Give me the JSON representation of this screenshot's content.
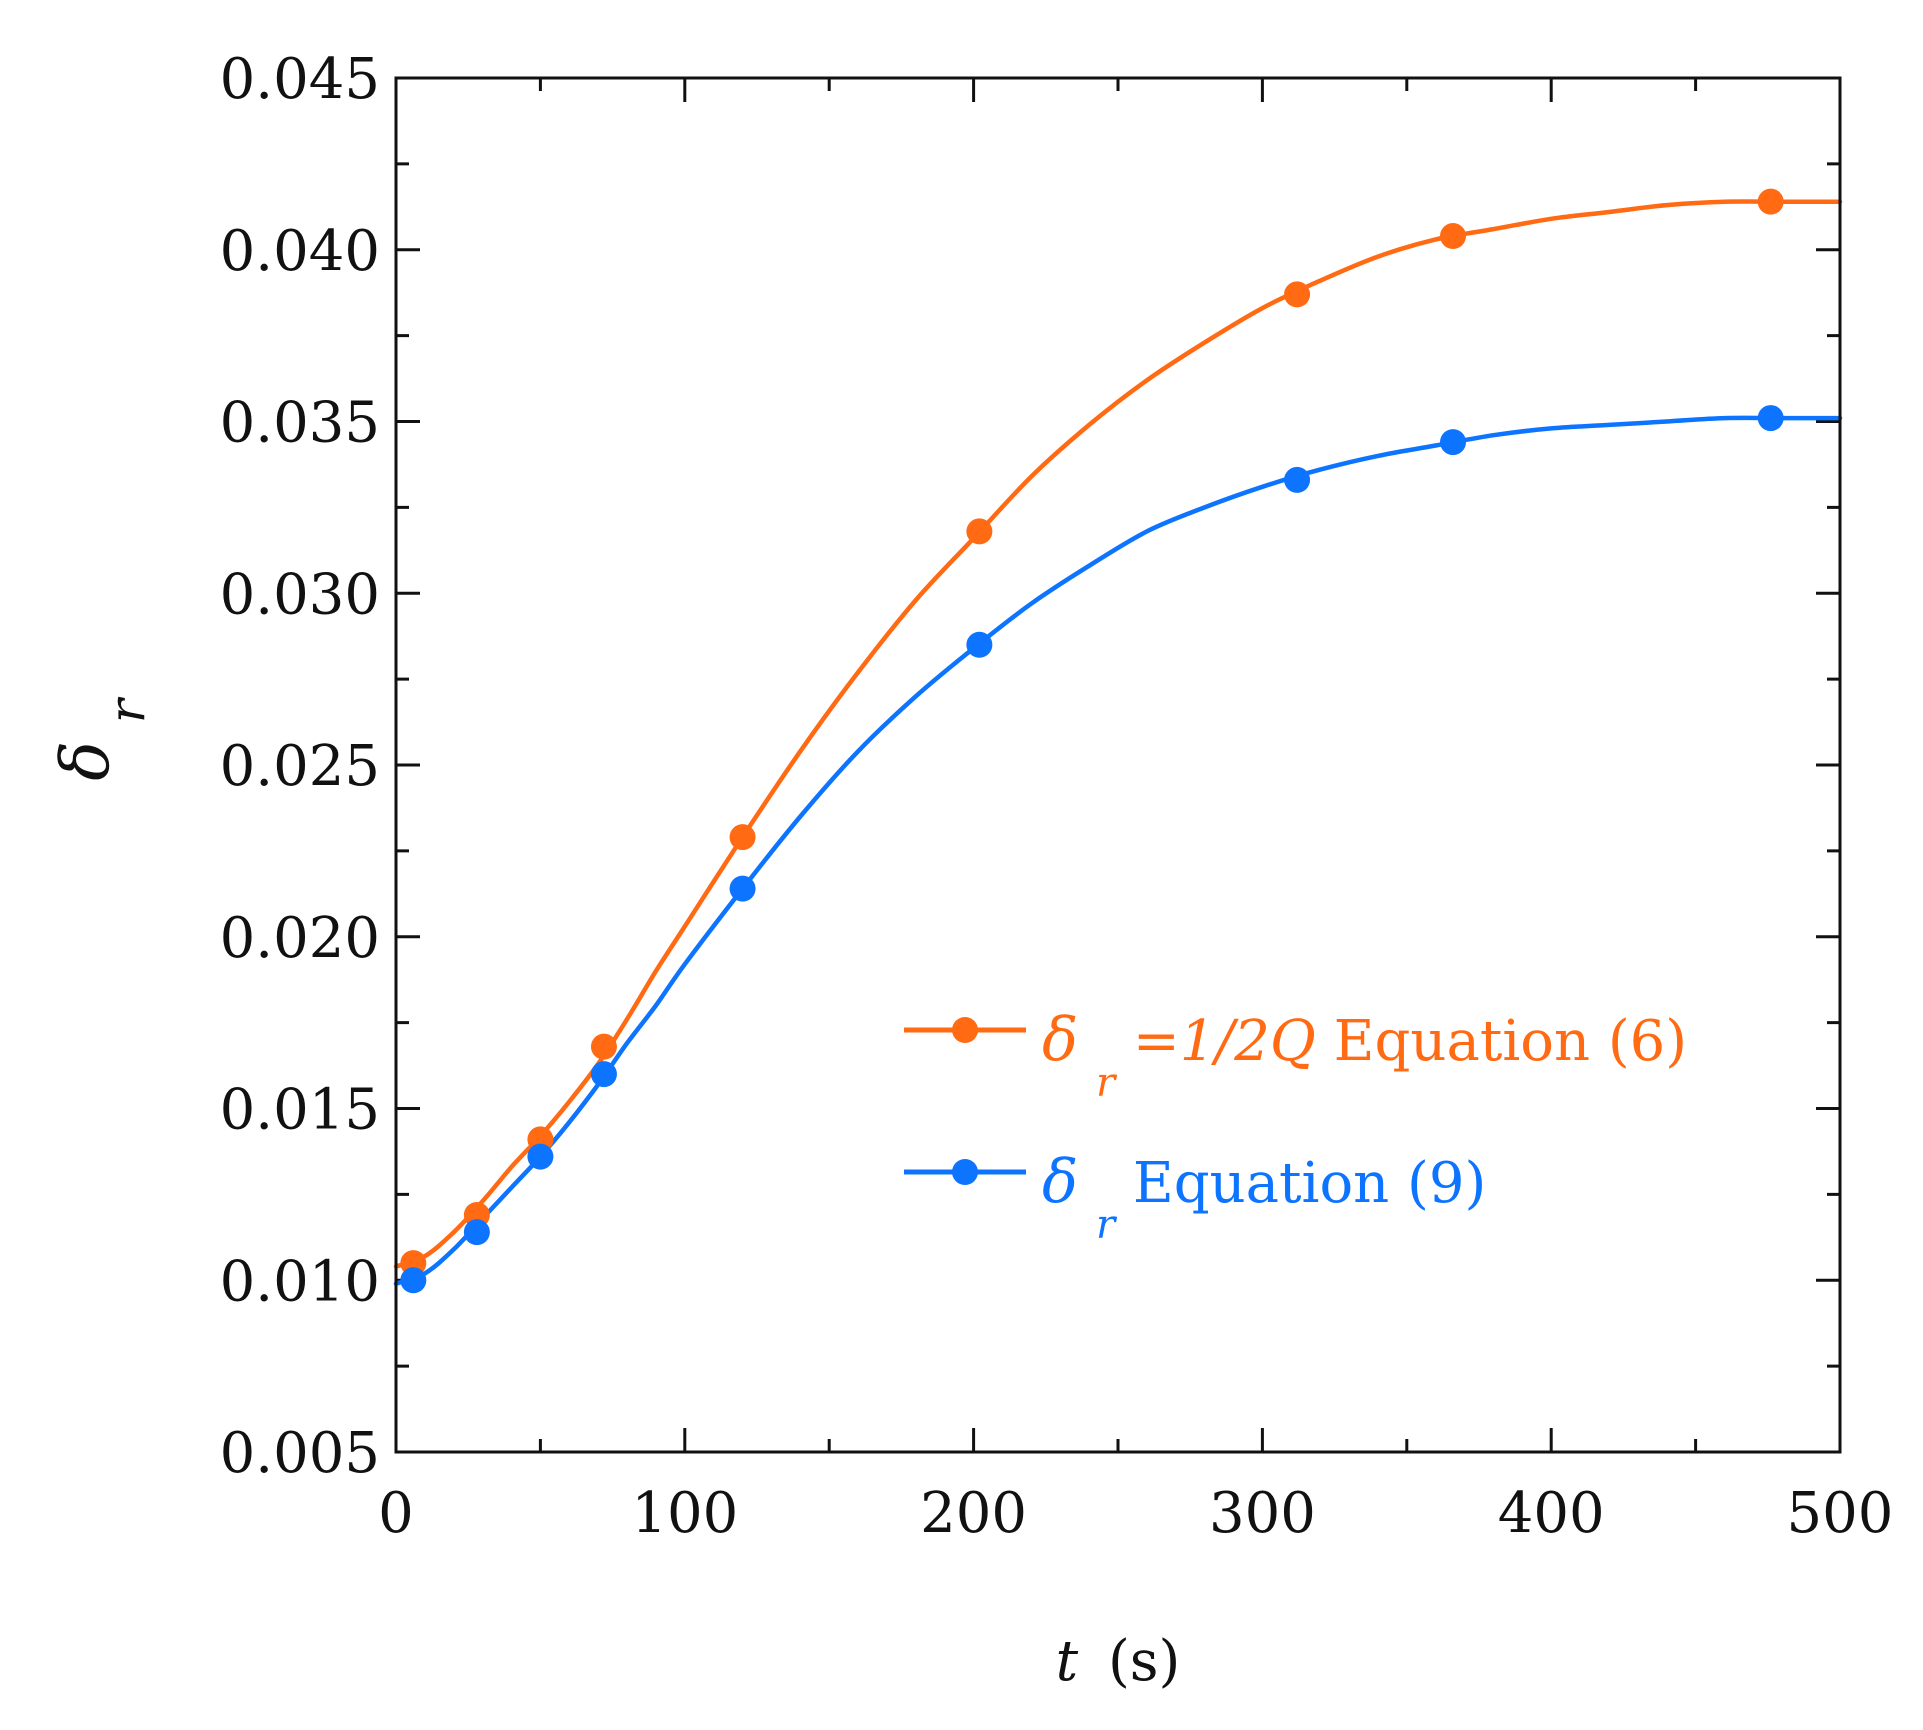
{
  "chart_data": {
    "type": "line",
    "title": "",
    "xlabel_symbol": "t",
    "xlabel_unit": "(s)",
    "ylabel_symbol": "δ",
    "ylabel_subscript": "r",
    "xlim": [
      0,
      500
    ],
    "ylim": [
      0.005,
      0.045
    ],
    "x_ticks": [
      0,
      100,
      200,
      300,
      400,
      500
    ],
    "x_tick_labels": [
      "0",
      "100",
      "200",
      "300",
      "400",
      "500"
    ],
    "y_ticks": [
      0.005,
      0.01,
      0.015,
      0.02,
      0.025,
      0.03,
      0.035,
      0.04,
      0.045
    ],
    "y_tick_labels": [
      "0.005",
      "0.010",
      "0.015",
      "0.020",
      "0.025",
      "0.030",
      "0.035",
      "0.040",
      "0.045"
    ],
    "grid": false,
    "legend_position": "center-right",
    "series": [
      {
        "name": "δr=1/2Q Equation (6)",
        "legend_symbol": "δ",
        "legend_subscript": "r",
        "legend_italic": "=1/2Q",
        "legend_text": " Equation (6)",
        "color": "#ff6a13",
        "x": [
          6,
          28,
          50,
          72,
          120,
          202,
          312,
          366,
          476
        ],
        "values": [
          0.0105,
          0.0119,
          0.0141,
          0.0168,
          0.0229,
          0.0318,
          0.0387,
          0.0404,
          0.0414
        ],
        "curve_x": [
          0,
          10,
          20,
          30,
          40,
          50,
          60,
          70,
          80,
          90,
          100,
          120,
          140,
          160,
          180,
          200,
          220,
          240,
          260,
          280,
          300,
          320,
          340,
          360,
          380,
          400,
          420,
          440,
          460,
          480,
          500
        ],
        "curve_y": [
          0.0104,
          0.0107,
          0.0114,
          0.0123,
          0.0133,
          0.0142,
          0.0152,
          0.0163,
          0.0176,
          0.019,
          0.0203,
          0.0229,
          0.0254,
          0.0277,
          0.0298,
          0.0316,
          0.0334,
          0.0349,
          0.0362,
          0.0373,
          0.0383,
          0.0391,
          0.0398,
          0.0403,
          0.0406,
          0.0409,
          0.0411,
          0.0413,
          0.0414,
          0.0414,
          0.0414
        ]
      },
      {
        "name": "δr Equation (9)",
        "legend_symbol": "δ",
        "legend_subscript": "r",
        "legend_italic": "",
        "legend_text": " Equation (9)",
        "color": "#0d74ff",
        "x": [
          6,
          28,
          50,
          72,
          120,
          202,
          312,
          366,
          476
        ],
        "values": [
          0.01,
          0.0114,
          0.0136,
          0.016,
          0.0214,
          0.0285,
          0.0333,
          0.0344,
          0.0351
        ],
        "curve_x": [
          0,
          10,
          20,
          30,
          40,
          50,
          60,
          70,
          80,
          90,
          100,
          120,
          140,
          160,
          180,
          200,
          220,
          240,
          260,
          280,
          300,
          320,
          340,
          360,
          380,
          400,
          420,
          440,
          460,
          480,
          500
        ],
        "curve_y": [
          0.0099,
          0.0102,
          0.0109,
          0.0118,
          0.0127,
          0.0136,
          0.0146,
          0.0157,
          0.0169,
          0.018,
          0.0192,
          0.0214,
          0.0235,
          0.0254,
          0.027,
          0.0284,
          0.0297,
          0.0308,
          0.0318,
          0.0325,
          0.0331,
          0.0336,
          0.034,
          0.0343,
          0.0346,
          0.0348,
          0.0349,
          0.035,
          0.0351,
          0.0351,
          0.0351
        ]
      }
    ]
  }
}
